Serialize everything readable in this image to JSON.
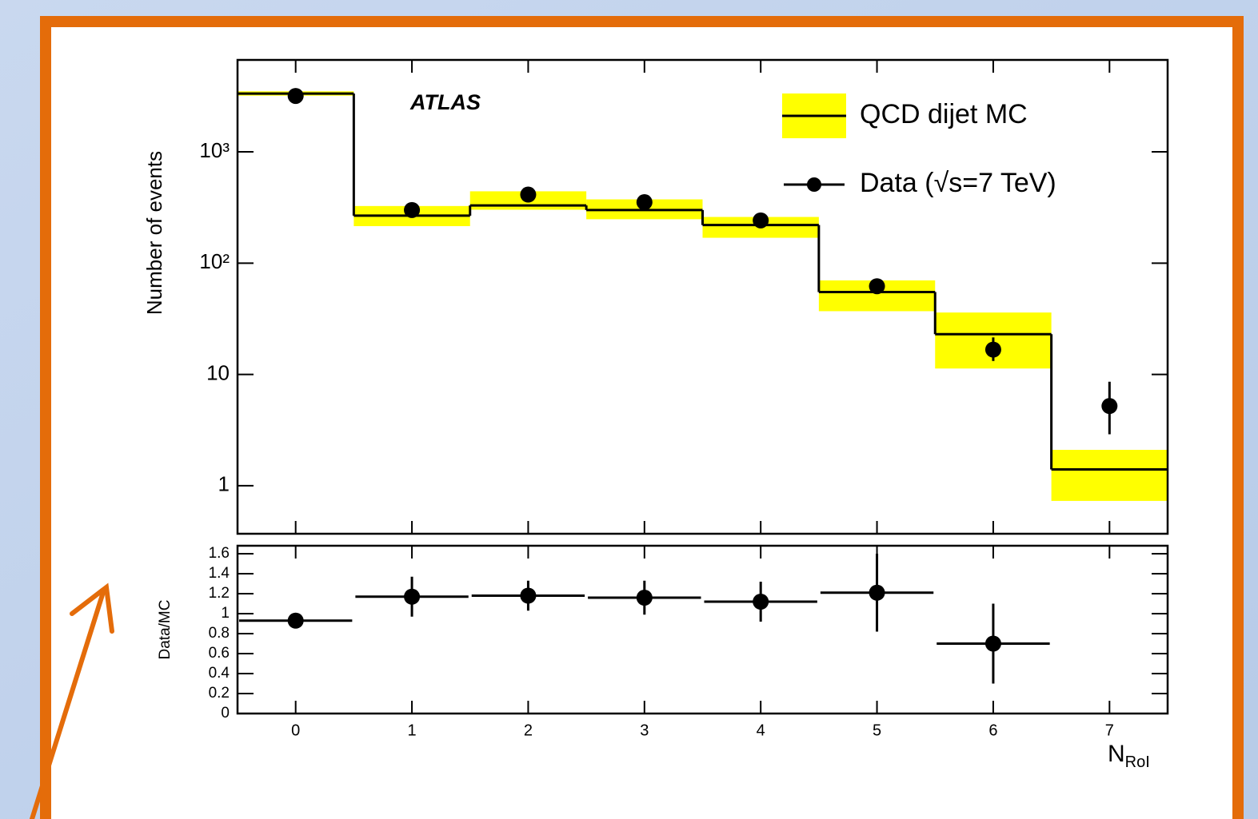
{
  "chart_data": [
    {
      "type": "step",
      "title": "ATLAS",
      "y_label": "Number of events",
      "log_y": true,
      "legend": "upper right",
      "x": [
        0,
        1,
        2,
        3,
        4,
        5,
        6,
        7
      ],
      "xlim": [
        -0.5,
        7.5
      ],
      "xticks": [
        0,
        1,
        2,
        3,
        4,
        5,
        6,
        7
      ],
      "ylim": [
        0.37,
        6700
      ],
      "yticks": [
        1,
        10,
        {
          "value": 100,
          "label": "10²"
        },
        {
          "value": 1000,
          "label": "10³"
        }
      ],
      "series": [
        {
          "name": "QCD dijet MC",
          "color": "#000000",
          "band_color": "#ffff00",
          "values": [
            3340,
            267,
            330,
            300,
            220,
            55,
            23,
            1.4
          ],
          "band_low": [
            3200,
            215,
            302,
            248,
            169,
            37,
            11.3,
            0.73
          ],
          "band_high": [
            3500,
            326,
            442,
            374,
            260,
            70,
            36,
            2.1
          ]
        },
        {
          "name": "Data (√s=7 TeV)",
          "color": "#000000",
          "values": [
            3180,
            300,
            413,
            353,
            242,
            62,
            16.7,
            5.2
          ],
          "lower": [
            3120,
            285,
            395,
            336,
            228,
            53,
            13.2,
            2.9
          ],
          "upper": [
            3240,
            315,
            431,
            370,
            256,
            71,
            21.5,
            8.6
          ]
        }
      ]
    },
    {
      "type": "errorbar",
      "y_label": "Data/MC",
      "x_label": "N",
      "x_label_sub": "RoI",
      "x": [
        0,
        1,
        2,
        3,
        4,
        5,
        6,
        7
      ],
      "xlim": [
        -0.5,
        7.5
      ],
      "xticks": [
        0,
        1,
        2,
        3,
        4,
        5,
        6,
        7
      ],
      "ylim": [
        0,
        1.68
      ],
      "yticks": [
        0,
        0.2,
        0.4,
        0.6,
        0.8,
        1,
        1.2,
        1.4,
        1.6
      ],
      "series": [
        {
          "color": "#000000",
          "values": [
            0.93,
            1.17,
            1.18,
            1.16,
            1.12,
            1.21,
            0.7,
            null
          ],
          "errors": [
            0.03,
            0.2,
            0.15,
            0.17,
            0.2,
            0.39,
            0.4,
            null
          ]
        }
      ]
    }
  ]
}
